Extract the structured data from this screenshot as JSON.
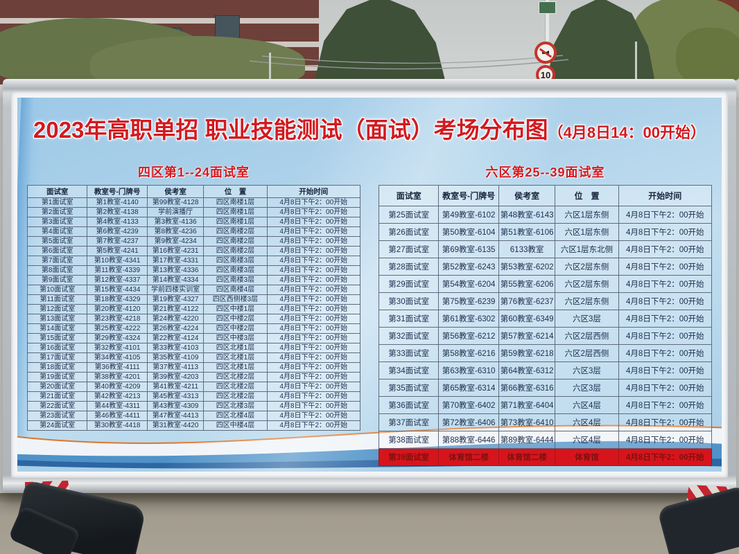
{
  "scene": {
    "speed_limit": "10"
  },
  "board": {
    "title": "2023年高职单招 职业技能测试（面试）考场分布图",
    "title_suffix": "（4月8日14：00开始）"
  },
  "tables": [
    {
      "title": "四区第1--24面试室",
      "columns": [
        "面试室",
        "教室号-门牌号",
        "侯考室",
        "位　置",
        "开始时间"
      ],
      "rows": [
        [
          "第1面试室",
          "第1教室-4140",
          "第99教室-4128",
          "四区南楼1层",
          "4月8日下午2：00开始"
        ],
        [
          "第2面试室",
          "第2教室-4138",
          "学前演播厅",
          "四区南楼1层",
          "4月8日下午2：00开始"
        ],
        [
          "第3面试室",
          "第4教室-4133",
          "第3教室-4136",
          "四区南楼1层",
          "4月8日下午2：00开始"
        ],
        [
          "第4面试室",
          "第6教室-4239",
          "第8教室-4236",
          "四区南楼2层",
          "4月8日下午2：00开始"
        ],
        [
          "第5面试室",
          "第7教室-4237",
          "第9教室-4234",
          "四区南楼2层",
          "4月8日下午2：00开始"
        ],
        [
          "第6面试室",
          "第5教室-4241",
          "第16教室-4231",
          "四区南楼2层",
          "4月8日下午2：00开始"
        ],
        [
          "第7面试室",
          "第10教室-4341",
          "第17教室-4331",
          "四区南楼3层",
          "4月8日下午2：00开始"
        ],
        [
          "第8面试室",
          "第11教室-4339",
          "第13教室-4336",
          "四区南楼3层",
          "4月8日下午2：00开始"
        ],
        [
          "第9面试室",
          "第12教室-4337",
          "第14教室-4334",
          "四区南楼3层",
          "4月8日下午2：00开始"
        ],
        [
          "第10面试室",
          "第15教室-4434",
          "学前四楼实训室",
          "四区南楼4层",
          "4月8日下午2：00开始"
        ],
        [
          "第11面试室",
          "第18教室-4329",
          "第19教室-4327",
          "四区西侧楼3层",
          "4月8日下午2：00开始"
        ],
        [
          "第12面试室",
          "第20教室-4120",
          "第21教室-4122",
          "四区中楼1层",
          "4月8日下午2：00开始"
        ],
        [
          "第13面试室",
          "第23教室-4218",
          "第24教室-4220",
          "四区中楼2层",
          "4月8日下午2：00开始"
        ],
        [
          "第14面试室",
          "第25教室-4222",
          "第26教室-4224",
          "四区中楼2层",
          "4月8日下午2：00开始"
        ],
        [
          "第15面试室",
          "第29教室-4324",
          "第22教室-4124",
          "四区中楼3层",
          "4月8日下午2：00开始"
        ],
        [
          "第16面试室",
          "第32教室-4101",
          "第33教室-4103",
          "四区北楼1层",
          "4月8日下午2：00开始"
        ],
        [
          "第17面试室",
          "第34教室-4105",
          "第35教室-4109",
          "四区北楼1层",
          "4月8日下午2：00开始"
        ],
        [
          "第18面试室",
          "第36教室-4111",
          "第37教室-4113",
          "四区北楼1层",
          "4月8日下午2：00开始"
        ],
        [
          "第19面试室",
          "第38教室-4201",
          "第39教室-4203",
          "四区北楼2层",
          "4月8日下午2：00开始"
        ],
        [
          "第20面试室",
          "第40教室-4209",
          "第41教室-4211",
          "四区北楼2层",
          "4月8日下午2：00开始"
        ],
        [
          "第21面试室",
          "第42教室-4213",
          "第45教室-4313",
          "四区北楼2层",
          "4月8日下午2：00开始"
        ],
        [
          "第22面试室",
          "第44教室-4311",
          "第43教室-4309",
          "四区北楼3层",
          "4月8日下午2：00开始"
        ],
        [
          "第23面试室",
          "第46教室-4411",
          "第47教室-4413",
          "四区北楼4层",
          "4月8日下午2：00开始"
        ],
        [
          "第24面试室",
          "第30教室-4418",
          "第31教室-4420",
          "四区中楼4层",
          "4月8日下午2：00开始"
        ]
      ]
    },
    {
      "title": "六区第25--39面试室",
      "columns": [
        "面试室",
        "教室号-门牌号",
        "侯考室",
        "位　置",
        "开始时间"
      ],
      "highlight_row": 14,
      "rows": [
        [
          "第25面试室",
          "第49教室-6102",
          "第48教室-6143",
          "六区1层东侧",
          "4月8日下午2：00开始"
        ],
        [
          "第26面试室",
          "第50教室-6104",
          "第51教室-6106",
          "六区1层东侧",
          "4月8日下午2：00开始"
        ],
        [
          "第27面试室",
          "第69教室-6135",
          "6133教室",
          "六区1层东北侧",
          "4月8日下午2：00开始"
        ],
        [
          "第28面试室",
          "第52教室-6243",
          "第53教室-6202",
          "六区2层东侧",
          "4月8日下午2：00开始"
        ],
        [
          "第29面试室",
          "第54教室-6204",
          "第55教室-6206",
          "六区2层东侧",
          "4月8日下午2：00开始"
        ],
        [
          "第30面试室",
          "第75教室-6239",
          "第76教室-6237",
          "六区2层东侧",
          "4月8日下午2：00开始"
        ],
        [
          "第31面试室",
          "第61教室-6302",
          "第60教室-6349",
          "六区3层",
          "4月8日下午2：00开始"
        ],
        [
          "第32面试室",
          "第56教室-6212",
          "第57教室-6214",
          "六区2层西侧",
          "4月8日下午2：00开始"
        ],
        [
          "第33面试室",
          "第58教室-6216",
          "第59教室-6218",
          "六区2层西侧",
          "4月8日下午2：00开始"
        ],
        [
          "第34面试室",
          "第63教室-6310",
          "第64教室-6312",
          "六区3层",
          "4月8日下午2：00开始"
        ],
        [
          "第35面试室",
          "第65教室-6314",
          "第66教室-6316",
          "六区3层",
          "4月8日下午2：00开始"
        ],
        [
          "第36面试室",
          "第70教室-6402",
          "第71教室-6404",
          "六区4层",
          "4月8日下午2：00开始"
        ],
        [
          "第37面试室",
          "第72教室-6406",
          "第73教室-6410",
          "六区4层",
          "4月8日下午2：00开始"
        ],
        [
          "第38面试室",
          "第88教室-6446",
          "第89教室-6444",
          "六区4层",
          "4月8日下午2：00开始"
        ],
        [
          "第39面试室",
          "体育馆二楼",
          "体育馆二楼",
          "体育馆",
          "4月8日下午2：00开始"
        ]
      ]
    }
  ],
  "colors": {
    "title_red": "#d21a20",
    "poster_blue": "#a9cfe9",
    "highlight_row_bg": "#d7141c",
    "frame_silver": "#c3c7cb",
    "wave_deep_blue": "#2c66a3",
    "wave_orange": "#dd7a33",
    "cone_red": "#c32430"
  }
}
